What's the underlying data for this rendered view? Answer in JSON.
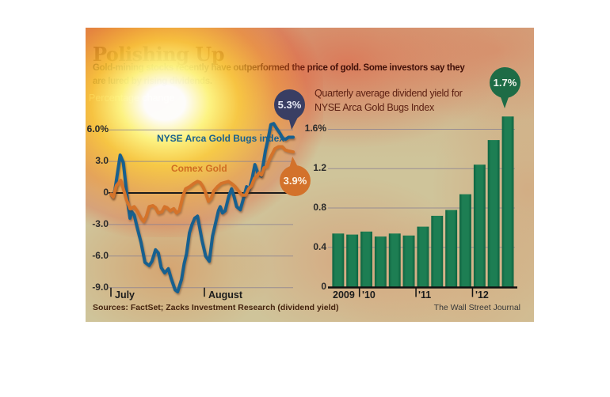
{
  "graphic": {
    "title": "Polishing Up",
    "subtitle_line1": "Gold-mining stocks recently have outperformed the price of gold. Some investors say they",
    "subtitle_line2": "are lured by rising dividends.",
    "unit_note": "Percentage change",
    "right_title_line1": "Quarterly average dividend yield for",
    "right_title_line2": "NYSE Arca Gold Bugs Index",
    "sources": "Sources: FactSet; Zacks Investment Research (dividend yield)",
    "credit": "The Wall Street Journal"
  },
  "colors": {
    "background_tan": "#cfc49a",
    "title_red": "#822c0f",
    "subtitle_maroon": "#411008",
    "note_cream": "#efe8c2",
    "blue_line": "#17608f",
    "orange_line": "#d4732a",
    "green_bar": "#177a4e",
    "green_bar_edge": "#0e6340",
    "navy_bubble": "#393e63",
    "orange_bubble": "#d3722b",
    "green_bubble": "#1e6c46",
    "gridline": "#8b8292",
    "zero_line": "#1a1a1a",
    "axis_text": "#2b2b2b",
    "right_title_text": "#5d2012",
    "sources_text": "#44220d",
    "credit_text": "#383838"
  },
  "chart_data": [
    {
      "type": "line",
      "title": "Percentage change",
      "xticks": [
        "July",
        "August"
      ],
      "ylim": [
        -9.5,
        7
      ],
      "grid": true,
      "yticks": {
        "labels": [
          "6.0%",
          "3.0",
          "0",
          "-3.0",
          "-6.0",
          "-9.0"
        ],
        "values": [
          6,
          3,
          0,
          -3,
          -6,
          -9
        ]
      },
      "series": [
        {
          "name": "NYSE Arca Gold Bugs index",
          "final_callout": "5.3%",
          "x": [
            0.0,
            0.01,
            0.022,
            0.051,
            0.068,
            0.085,
            0.096,
            0.105,
            0.115,
            0.128,
            0.143,
            0.165,
            0.187,
            0.21,
            0.225,
            0.245,
            0.26,
            0.276,
            0.295,
            0.315,
            0.33,
            0.352,
            0.366,
            0.388,
            0.402,
            0.415,
            0.431,
            0.445,
            0.46,
            0.475,
            0.5,
            0.52,
            0.54,
            0.558,
            0.575,
            0.59,
            0.6,
            0.612,
            0.627,
            0.647,
            0.662,
            0.675,
            0.69,
            0.71,
            0.728,
            0.745,
            0.757,
            0.775,
            0.79,
            0.806,
            0.825,
            0.848,
            0.862,
            0.878,
            0.893,
            0.907,
            0.927,
            0.943,
            0.958,
            0.975,
            1.0
          ],
          "values": [
            -0.1,
            -0.4,
            0.3,
            3.6,
            2.9,
            0.3,
            -1.4,
            -2.4,
            -1.8,
            -2.1,
            -3.2,
            -4.7,
            -6.6,
            -6.9,
            -6.5,
            -5.4,
            -5.7,
            -7.1,
            -7.6,
            -7.2,
            -8.1,
            -9.2,
            -9.4,
            -8.2,
            -6.7,
            -5.8,
            -3.8,
            -3.0,
            -2.4,
            -2.2,
            -4.5,
            -6.0,
            -6.5,
            -4.1,
            -2.8,
            -1.7,
            -1.3,
            -1.9,
            -1.7,
            -0.3,
            0.4,
            -0.3,
            -1.3,
            -1.6,
            -0.5,
            0.6,
            0.2,
            1.4,
            2.7,
            1.9,
            1.6,
            4.0,
            5.1,
            6.5,
            6.6,
            6.2,
            5.7,
            5.2,
            5.1,
            5.3,
            5.3
          ]
        },
        {
          "name": "Comex Gold",
          "final_callout": "3.9%",
          "x": [
            0.0,
            0.012,
            0.03,
            0.054,
            0.07,
            0.085,
            0.105,
            0.128,
            0.144,
            0.165,
            0.18,
            0.195,
            0.21,
            0.23,
            0.245,
            0.26,
            0.28,
            0.295,
            0.308,
            0.325,
            0.345,
            0.36,
            0.375,
            0.395,
            0.41,
            0.432,
            0.455,
            0.475,
            0.49,
            0.505,
            0.52,
            0.535,
            0.55,
            0.565,
            0.585,
            0.605,
            0.625,
            0.645,
            0.662,
            0.682,
            0.7,
            0.72,
            0.74,
            0.756,
            0.772,
            0.788,
            0.802,
            0.812,
            0.826,
            0.84,
            0.856,
            0.87,
            0.885,
            0.9,
            0.92,
            0.94,
            0.956,
            0.972,
            1.0
          ],
          "values": [
            -0.1,
            -0.4,
            0.7,
            1.2,
            0.3,
            -0.6,
            -1.5,
            -1.3,
            -1.7,
            -2.4,
            -2.7,
            -2.2,
            -1.3,
            -1.2,
            -1.4,
            -1.9,
            -1.8,
            -1.3,
            -1.4,
            -1.7,
            -1.5,
            -1.9,
            -1.7,
            -0.3,
            0.4,
            0.6,
            0.9,
            1.1,
            1.0,
            0.6,
            0.0,
            -0.8,
            -0.5,
            0.2,
            0.6,
            0.9,
            1.0,
            1.1,
            0.9,
            0.6,
            0.2,
            -0.2,
            -0.2,
            0.4,
            0.7,
            1.4,
            1.6,
            1.9,
            1.7,
            2.4,
            2.5,
            3.2,
            3.7,
            4.2,
            4.4,
            4.4,
            4.1,
            4.0,
            3.9
          ]
        }
      ]
    },
    {
      "type": "bar",
      "title": "Quarterly average dividend yield for NYSE Arca Gold Bugs Index",
      "categories": [
        "2009 Q3",
        "2009 Q4",
        "2010 Q1",
        "2010 Q2",
        "2010 Q3",
        "2010 Q4",
        "2011 Q1",
        "2011 Q2",
        "2011 Q3",
        "2011 Q4",
        "2012 Q1",
        "2012 Q2",
        "2012 Q3"
      ],
      "values": [
        0.54,
        0.53,
        0.56,
        0.51,
        0.54,
        0.52,
        0.61,
        0.72,
        0.78,
        0.94,
        1.24,
        1.49,
        1.73
      ],
      "xticks": [
        "2009",
        "'10",
        "'11",
        "'12"
      ],
      "yticks": {
        "labels": [
          "1.6%",
          "1.2",
          "0.8",
          "0.4",
          "0"
        ],
        "values": [
          1.6,
          1.2,
          0.8,
          0.4,
          0
        ]
      },
      "ylim": [
        0,
        1.8
      ],
      "grid": true,
      "callout": "1.7%"
    }
  ]
}
